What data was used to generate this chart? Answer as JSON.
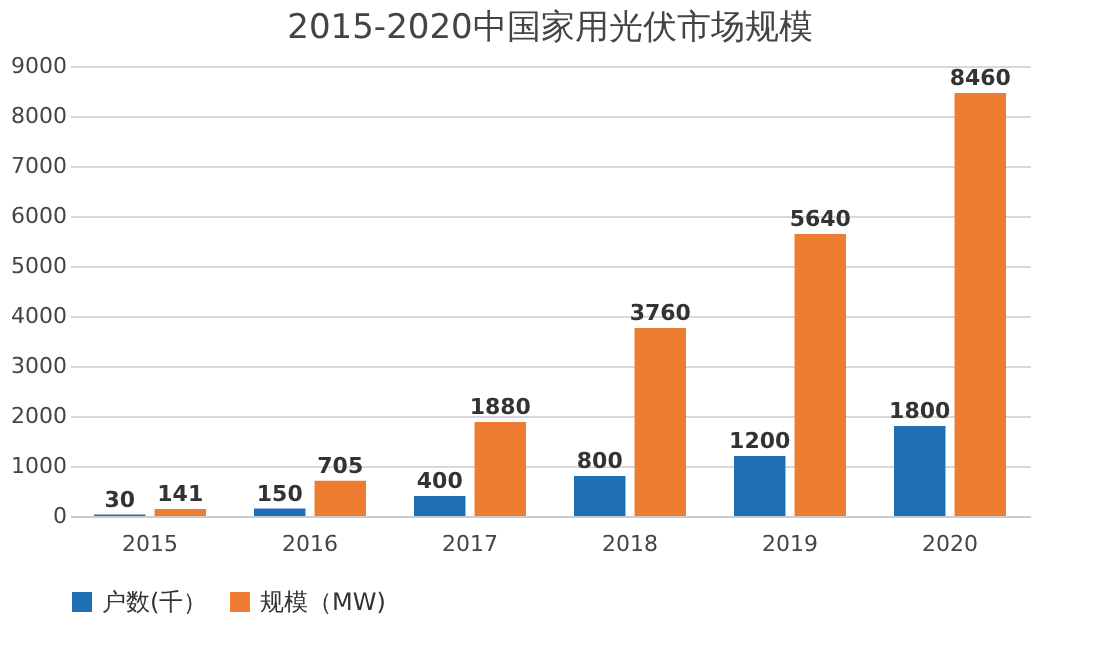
{
  "chart_data": {
    "type": "bar",
    "title": "2015-2020中国家用光伏市场规模",
    "categories": [
      "2015",
      "2016",
      "2017",
      "2018",
      "2019",
      "2020"
    ],
    "series": [
      {
        "name": "户数(千）",
        "color": "#1f6fb5",
        "values": [
          30,
          150,
          400,
          800,
          1200,
          1800
        ]
      },
      {
        "name": "规模（MW)",
        "color": "#ed7d31",
        "values": [
          141,
          705,
          1880,
          3760,
          5640,
          8460
        ]
      }
    ],
    "ylim": [
      0,
      9000
    ],
    "yticks": [
      0,
      1000,
      2000,
      3000,
      4000,
      5000,
      6000,
      7000,
      8000,
      9000
    ],
    "grid": "y",
    "legend": "bottom",
    "data_labels": true
  }
}
